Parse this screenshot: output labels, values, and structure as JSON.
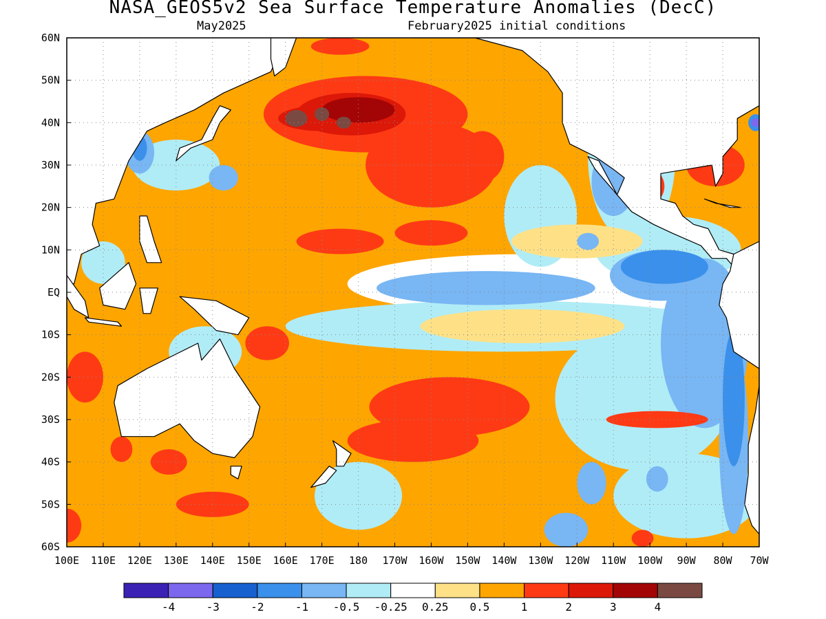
{
  "title": "NASA_GEOS5v2 Sea Surface Temperature Anomalies (DecC)",
  "subtitle_left": "May2025",
  "subtitle_right": "February2025 initial conditions",
  "map": {
    "lon_range": [
      100,
      290
    ],
    "lat_range": [
      -60,
      60
    ],
    "lat_ticks": [
      {
        "value": 60,
        "label": "60N"
      },
      {
        "value": 50,
        "label": "50N"
      },
      {
        "value": 40,
        "label": "40N"
      },
      {
        "value": 30,
        "label": "30N"
      },
      {
        "value": 20,
        "label": "20N"
      },
      {
        "value": 10,
        "label": "10N"
      },
      {
        "value": 0,
        "label": "EQ"
      },
      {
        "value": -10,
        "label": "10S"
      },
      {
        "value": -20,
        "label": "20S"
      },
      {
        "value": -30,
        "label": "30S"
      },
      {
        "value": -40,
        "label": "40S"
      },
      {
        "value": -50,
        "label": "50S"
      },
      {
        "value": -60,
        "label": "60S"
      }
    ],
    "lon_ticks": [
      {
        "value": 100,
        "label": "100E"
      },
      {
        "value": 110,
        "label": "110E"
      },
      {
        "value": 120,
        "label": "120E"
      },
      {
        "value": 130,
        "label": "130E"
      },
      {
        "value": 140,
        "label": "140E"
      },
      {
        "value": 150,
        "label": "150E"
      },
      {
        "value": 160,
        "label": "160E"
      },
      {
        "value": 170,
        "label": "170E"
      },
      {
        "value": 180,
        "label": "180"
      },
      {
        "value": 190,
        "label": "170W"
      },
      {
        "value": 200,
        "label": "160W"
      },
      {
        "value": 210,
        "label": "150W"
      },
      {
        "value": 220,
        "label": "140W"
      },
      {
        "value": 230,
        "label": "130W"
      },
      {
        "value": 240,
        "label": "120W"
      },
      {
        "value": 250,
        "label": "110W"
      },
      {
        "value": 260,
        "label": "100W"
      },
      {
        "value": 270,
        "label": "90W"
      },
      {
        "value": 280,
        "label": "80W"
      },
      {
        "value": 290,
        "label": "70W"
      }
    ],
    "grid": true
  },
  "colorbar": {
    "colors": [
      "#3b22b5",
      "#7b68ee",
      "#1660d0",
      "#3a90ea",
      "#78b6f4",
      "#b0ecf6",
      "#ffffff",
      "#fee187",
      "#fea500",
      "#fe3a15",
      "#dc1808",
      "#a30506",
      "#7a4a42"
    ],
    "labels": [
      "-4",
      "-3",
      "-2",
      "-1",
      "-0.5",
      "-0.25",
      "0.25",
      "0.5",
      "1",
      "2",
      "3",
      "4"
    ]
  },
  "regions": [
    {
      "level": 8,
      "type": "box",
      "lon": [
        100,
        290
      ],
      "lat": [
        -60,
        60
      ]
    },
    {
      "level": 6,
      "type": "ellipse",
      "c": [
        225,
        2
      ],
      "r": [
        48,
        7
      ]
    },
    {
      "level": 6,
      "type": "ellipse",
      "c": [
        260,
        0
      ],
      "r": [
        25,
        12
      ]
    },
    {
      "level": 5,
      "type": "ellipse",
      "c": [
        230,
        18
      ],
      "r": [
        10,
        12
      ]
    },
    {
      "level": 5,
      "type": "ellipse",
      "c": [
        255,
        32
      ],
      "r": [
        12,
        20
      ]
    },
    {
      "level": 5,
      "type": "ellipse",
      "c": [
        268,
        48
      ],
      "r": [
        15,
        10
      ]
    },
    {
      "level": 5,
      "type": "ellipse",
      "c": [
        220,
        -8
      ],
      "r": [
        60,
        6
      ]
    },
    {
      "level": 5,
      "type": "ellipse",
      "c": [
        265,
        10
      ],
      "r": [
        20,
        8
      ]
    },
    {
      "level": 5,
      "type": "ellipse",
      "c": [
        258,
        -25
      ],
      "r": [
        24,
        17
      ]
    },
    {
      "level": 5,
      "type": "ellipse",
      "c": [
        270,
        -48
      ],
      "r": [
        20,
        10
      ]
    },
    {
      "level": 5,
      "type": "ellipse",
      "c": [
        180,
        -48
      ],
      "r": [
        12,
        8
      ]
    },
    {
      "level": 5,
      "type": "ellipse",
      "c": [
        130,
        30
      ],
      "r": [
        12,
        6
      ]
    },
    {
      "level": 5,
      "type": "ellipse",
      "c": [
        110,
        7
      ],
      "r": [
        6,
        5
      ]
    },
    {
      "level": 5,
      "type": "ellipse",
      "c": [
        138,
        -14
      ],
      "r": [
        10,
        6
      ]
    },
    {
      "level": 7,
      "type": "ellipse",
      "c": [
        225,
        -8
      ],
      "r": [
        28,
        4
      ]
    },
    {
      "level": 7,
      "type": "ellipse",
      "c": [
        240,
        12
      ],
      "r": [
        18,
        4
      ]
    },
    {
      "level": 4,
      "type": "ellipse",
      "c": [
        215,
        1
      ],
      "r": [
        30,
        4
      ]
    },
    {
      "level": 4,
      "type": "ellipse",
      "c": [
        275,
        -12
      ],
      "r": [
        12,
        20
      ]
    },
    {
      "level": 4,
      "type": "ellipse",
      "c": [
        283,
        -35
      ],
      "r": [
        4,
        22
      ]
    },
    {
      "level": 4,
      "type": "ellipse",
      "c": [
        263,
        4
      ],
      "r": [
        14,
        6
      ]
    },
    {
      "level": 4,
      "type": "ellipse",
      "c": [
        243,
        12
      ],
      "r": [
        3,
        2
      ]
    },
    {
      "level": 4,
      "type": "ellipse",
      "c": [
        250,
        26
      ],
      "r": [
        6,
        8
      ]
    },
    {
      "level": 4,
      "type": "ellipse",
      "c": [
        244,
        -45
      ],
      "r": [
        4,
        5
      ]
    },
    {
      "level": 4,
      "type": "ellipse",
      "c": [
        262,
        -44
      ],
      "r": [
        3,
        3
      ]
    },
    {
      "level": 4,
      "type": "ellipse",
      "c": [
        237,
        -56
      ],
      "r": [
        6,
        4
      ]
    },
    {
      "level": 4,
      "type": "ellipse",
      "c": [
        120,
        33
      ],
      "r": [
        4,
        5
      ]
    },
    {
      "level": 4,
      "type": "ellipse",
      "c": [
        143,
        27
      ],
      "r": [
        4,
        3
      ]
    },
    {
      "level": 3,
      "type": "ellipse",
      "c": [
        264,
        6
      ],
      "r": [
        12,
        4
      ]
    },
    {
      "level": 3,
      "type": "ellipse",
      "c": [
        283,
        -25
      ],
      "r": [
        3,
        16
      ]
    },
    {
      "level": 3,
      "type": "ellipse",
      "c": [
        120,
        34
      ],
      "r": [
        2,
        3
      ]
    },
    {
      "level": 3,
      "type": "ellipse",
      "c": [
        289,
        40
      ],
      "r": [
        2,
        2
      ]
    },
    {
      "level": 1,
      "type": "ellipse",
      "c": [
        289,
        40
      ],
      "r": [
        1.2,
        1
      ]
    },
    {
      "level": 9,
      "type": "ellipse",
      "c": [
        182,
        42
      ],
      "r": [
        28,
        9
      ]
    },
    {
      "level": 9,
      "type": "ellipse",
      "c": [
        200,
        30
      ],
      "r": [
        18,
        10
      ]
    },
    {
      "level": 9,
      "type": "ellipse",
      "c": [
        175,
        12
      ],
      "r": [
        12,
        3
      ]
    },
    {
      "level": 9,
      "type": "ellipse",
      "c": [
        200,
        14
      ],
      "r": [
        10,
        3
      ]
    },
    {
      "level": 9,
      "type": "ellipse",
      "c": [
        214,
        32
      ],
      "r": [
        6,
        6
      ]
    },
    {
      "level": 9,
      "type": "ellipse",
      "c": [
        175,
        58
      ],
      "r": [
        8,
        2
      ]
    },
    {
      "level": 9,
      "type": "ellipse",
      "c": [
        278,
        30
      ],
      "r": [
        8,
        5
      ]
    },
    {
      "level": 9,
      "type": "ellipse",
      "c": [
        260,
        25
      ],
      "r": [
        4,
        4
      ]
    },
    {
      "level": 9,
      "type": "ellipse",
      "c": [
        205,
        -27
      ],
      "r": [
        22,
        7
      ]
    },
    {
      "level": 9,
      "type": "ellipse",
      "c": [
        195,
        -35
      ],
      "r": [
        18,
        5
      ]
    },
    {
      "level": 9,
      "type": "ellipse",
      "c": [
        155,
        -12
      ],
      "r": [
        6,
        4
      ]
    },
    {
      "level": 9,
      "type": "ellipse",
      "c": [
        105,
        -20
      ],
      "r": [
        5,
        6
      ]
    },
    {
      "level": 9,
      "type": "ellipse",
      "c": [
        100,
        -55
      ],
      "r": [
        4,
        4
      ]
    },
    {
      "level": 9,
      "type": "ellipse",
      "c": [
        115,
        -37
      ],
      "r": [
        3,
        3
      ]
    },
    {
      "level": 9,
      "type": "ellipse",
      "c": [
        140,
        -50
      ],
      "r": [
        10,
        3
      ]
    },
    {
      "level": 9,
      "type": "ellipse",
      "c": [
        128,
        -40
      ],
      "r": [
        5,
        3
      ]
    },
    {
      "level": 9,
      "type": "ellipse",
      "c": [
        262,
        -30
      ],
      "r": [
        14,
        2
      ]
    },
    {
      "level": 9,
      "type": "ellipse",
      "c": [
        258,
        -58
      ],
      "r": [
        3,
        2
      ]
    },
    {
      "level": 10,
      "type": "ellipse",
      "c": [
        178,
        42
      ],
      "r": [
        15,
        5
      ]
    },
    {
      "level": 10,
      "type": "ellipse",
      "c": [
        170,
        41
      ],
      "r": [
        12,
        3
      ]
    },
    {
      "level": 11,
      "type": "ellipse",
      "c": [
        180,
        43
      ],
      "r": [
        10,
        3
      ]
    },
    {
      "level": 12,
      "type": "ellipse",
      "c": [
        163,
        41
      ],
      "r": [
        3,
        2
      ]
    },
    {
      "level": 12,
      "type": "ellipse",
      "c": [
        170,
        42
      ],
      "r": [
        2,
        1.6
      ]
    },
    {
      "level": 12,
      "type": "ellipse",
      "c": [
        176,
        40
      ],
      "r": [
        2,
        1.4
      ]
    }
  ],
  "land": [
    {
      "name": "asia",
      "points": [
        [
          100,
          60
        ],
        [
          160,
          60
        ],
        [
          156,
          52
        ],
        [
          143,
          47
        ],
        [
          135,
          43
        ],
        [
          127,
          40
        ],
        [
          122,
          38
        ],
        [
          117,
          31
        ],
        [
          113,
          22
        ],
        [
          108,
          21
        ],
        [
          107,
          16
        ],
        [
          109,
          11
        ],
        [
          104,
          9
        ],
        [
          102,
          2
        ],
        [
          100,
          2
        ]
      ]
    },
    {
      "name": "japan",
      "points": [
        [
          130,
          31
        ],
        [
          134,
          34
        ],
        [
          140,
          36
        ],
        [
          142,
          40
        ],
        [
          145,
          43
        ],
        [
          142,
          44
        ],
        [
          140,
          41
        ],
        [
          137,
          36
        ],
        [
          131,
          34
        ]
      ]
    },
    {
      "name": "kamchatka",
      "points": [
        [
          156,
          60
        ],
        [
          163,
          60
        ],
        [
          160,
          53
        ],
        [
          157,
          51
        ],
        [
          156,
          55
        ]
      ]
    },
    {
      "name": "philippines",
      "points": [
        [
          120,
          18
        ],
        [
          122,
          18
        ],
        [
          124,
          12
        ],
        [
          126,
          7
        ],
        [
          122,
          7
        ],
        [
          120,
          12
        ]
      ]
    },
    {
      "name": "borneo",
      "points": [
        [
          109,
          1
        ],
        [
          117,
          7
        ],
        [
          119,
          2
        ],
        [
          116,
          -4
        ],
        [
          110,
          -3
        ]
      ]
    },
    {
      "name": "sumatra",
      "points": [
        [
          100,
          4
        ],
        [
          105,
          -2
        ],
        [
          106,
          -6
        ],
        [
          102,
          -4
        ],
        [
          100,
          -1
        ]
      ]
    },
    {
      "name": "sulawesi",
      "points": [
        [
          120,
          1
        ],
        [
          125,
          1
        ],
        [
          123,
          -5
        ],
        [
          121,
          -5
        ]
      ]
    },
    {
      "name": "java",
      "points": [
        [
          105,
          -6
        ],
        [
          114,
          -7
        ],
        [
          115,
          -8
        ],
        [
          106,
          -7
        ]
      ]
    },
    {
      "name": "new-guinea",
      "points": [
        [
          131,
          -1
        ],
        [
          141,
          -2
        ],
        [
          150,
          -6
        ],
        [
          147,
          -10
        ],
        [
          141,
          -9
        ],
        [
          135,
          -4
        ]
      ]
    },
    {
      "name": "australia",
      "points": [
        [
          114,
          -22
        ],
        [
          122,
          -18
        ],
        [
          129,
          -15
        ],
        [
          136,
          -12
        ],
        [
          137,
          -16
        ],
        [
          142,
          -11
        ],
        [
          146,
          -18
        ],
        [
          153,
          -27
        ],
        [
          151,
          -34
        ],
        [
          146,
          -39
        ],
        [
          140,
          -38
        ],
        [
          135,
          -35
        ],
        [
          131,
          -31
        ],
        [
          124,
          -34
        ],
        [
          115,
          -34
        ],
        [
          113,
          -26
        ]
      ]
    },
    {
      "name": "tasmania",
      "points": [
        [
          145,
          -41
        ],
        [
          148,
          -41
        ],
        [
          147,
          -44
        ],
        [
          145,
          -43
        ]
      ]
    },
    {
      "name": "new-zealand-north",
      "points": [
        [
          173,
          -35
        ],
        [
          178,
          -38
        ],
        [
          176,
          -41
        ],
        [
          174,
          -41
        ],
        [
          174,
          -37
        ]
      ]
    },
    {
      "name": "new-zealand-south",
      "points": [
        [
          172,
          -41
        ],
        [
          174,
          -42
        ],
        [
          171,
          -45
        ],
        [
          167,
          -46
        ],
        [
          169,
          -44
        ]
      ]
    },
    {
      "name": "north-america",
      "points": [
        [
          195,
          60
        ],
        [
          290,
          60
        ],
        [
          290,
          44
        ],
        [
          284,
          41
        ],
        [
          284,
          36
        ],
        [
          280,
          32
        ],
        [
          280,
          28
        ],
        [
          278,
          25
        ],
        [
          277,
          30
        ],
        [
          270,
          29
        ],
        [
          263,
          28
        ],
        [
          263,
          22
        ],
        [
          267,
          21
        ],
        [
          269,
          18
        ],
        [
          272,
          16
        ],
        [
          276,
          15
        ],
        [
          279,
          10
        ],
        [
          283,
          9
        ],
        [
          284,
          5
        ],
        [
          281,
          8
        ],
        [
          277,
          8
        ],
        [
          274,
          11
        ],
        [
          266,
          14
        ],
        [
          261,
          16
        ],
        [
          255,
          19
        ],
        [
          251,
          23
        ],
        [
          253,
          27
        ],
        [
          250,
          29
        ],
        [
          245,
          32
        ],
        [
          238,
          35
        ],
        [
          236,
          40
        ],
        [
          236,
          47
        ],
        [
          232,
          52
        ],
        [
          225,
          57
        ],
        [
          212,
          60
        ]
      ]
    },
    {
      "name": "baja",
      "points": [
        [
          243,
          32
        ],
        [
          246,
          31
        ],
        [
          251,
          23
        ],
        [
          250,
          24
        ],
        [
          245,
          29
        ]
      ]
    },
    {
      "name": "cuba",
      "points": [
        [
          275,
          22
        ],
        [
          282,
          20
        ],
        [
          285,
          20
        ],
        [
          278,
          21
        ]
      ]
    },
    {
      "name": "south-america",
      "points": [
        [
          290,
          -60
        ],
        [
          290,
          12
        ],
        [
          283,
          9
        ],
        [
          282,
          5
        ],
        [
          280,
          2
        ],
        [
          279,
          -3
        ],
        [
          281,
          -6
        ],
        [
          283,
          -14
        ],
        [
          290,
          -18
        ],
        [
          290,
          -22
        ],
        [
          289,
          -28
        ],
        [
          287,
          -36
        ],
        [
          287,
          -43
        ],
        [
          286,
          -50
        ],
        [
          288,
          -55
        ],
        [
          290,
          -57
        ]
      ]
    }
  ]
}
